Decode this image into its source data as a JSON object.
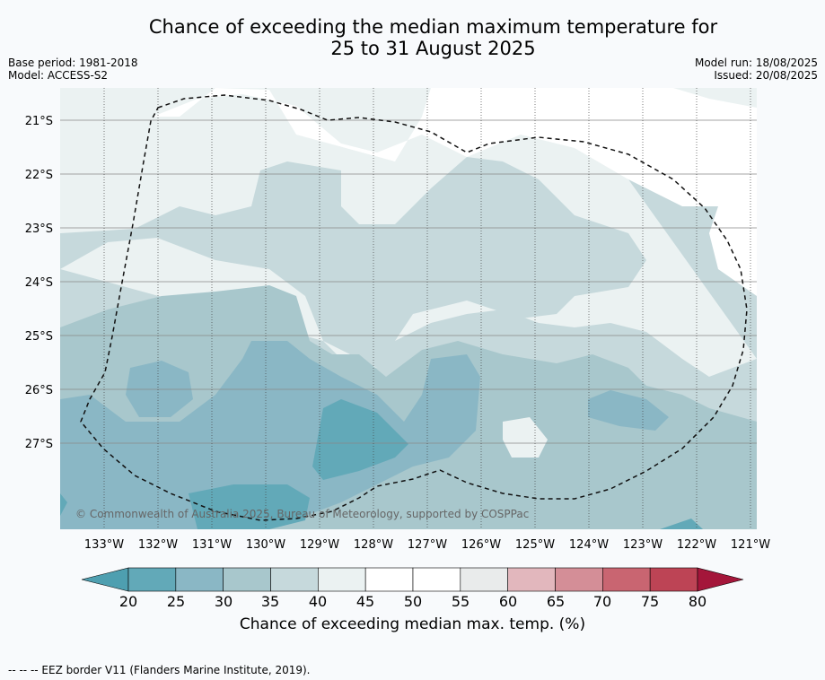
{
  "title_line1": "Chance of exceeding the median maximum temperature for",
  "title_line2": "25 to 31 August 2025",
  "base_period": "Base period: 1981-2018",
  "model": "Model: ACCESS-S2",
  "model_run": "Model run: 18/08/2025",
  "issued": "Issued: 20/08/2025",
  "copyright": "© Commonwealth of Australia 2025, Bureau of Meteorology, supported by COSPPac",
  "lat_labels": [
    "21°S",
    "22°S",
    "23°S",
    "24°S",
    "25°S",
    "26°S",
    "27°S"
  ],
  "lon_labels": [
    "133°W",
    "132°W",
    "131°W",
    "130°W",
    "129°W",
    "128°W",
    "127°W",
    "126°W",
    "125°W",
    "124°W",
    "123°W",
    "122°W",
    "121°W"
  ],
  "colorbar": {
    "ticks": [
      "20",
      "25",
      "30",
      "35",
      "40",
      "45",
      "50",
      "55",
      "60",
      "65",
      "70",
      "75",
      "80"
    ],
    "colors": [
      "#62a9b8",
      "#8ab7c5",
      "#a8c7cc",
      "#c6d9dc",
      "#ebf2f2",
      "#ffffff",
      "#ffffff",
      "#e9ebeb",
      "#e2b7bd",
      "#d48e97",
      "#c96571",
      "#bd4455"
    ],
    "low_color": "#4e9fb0",
    "high_color": "#a4163a",
    "label": "Chance of exceeding median max. temp. (%)"
  },
  "footer": "--  --  -- EEZ border V11 (Flanders Marine Institute, 2019)."
}
